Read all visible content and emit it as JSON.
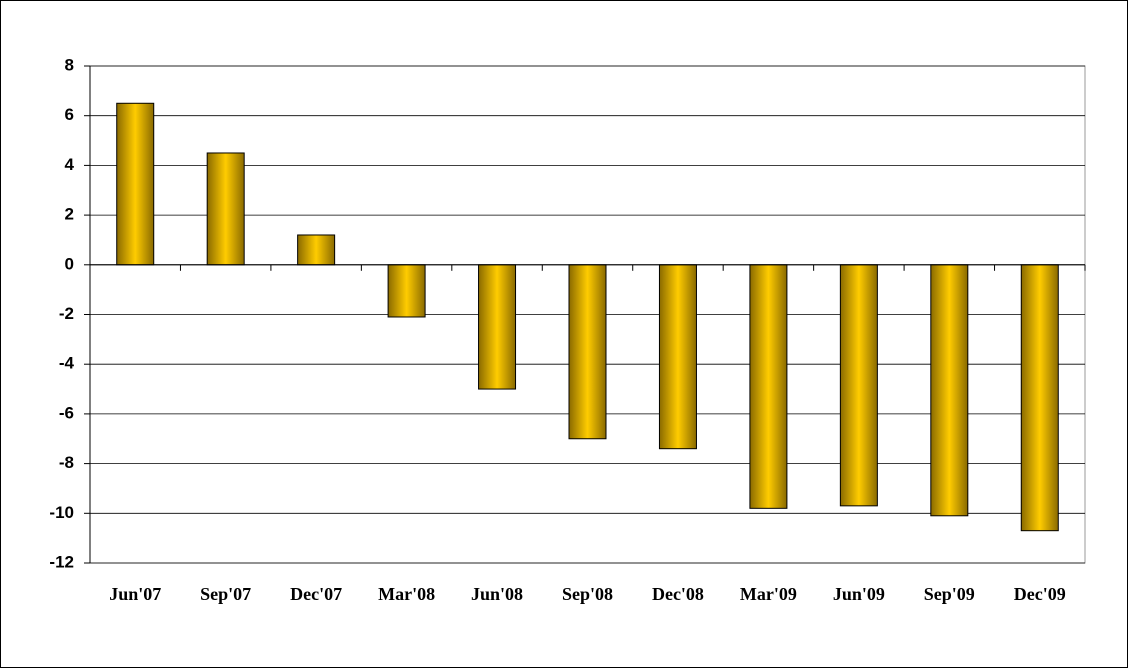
{
  "chart_data": {
    "type": "bar",
    "categories": [
      "Jun'07",
      "Sep'07",
      "Dec'07",
      "Mar'08",
      "Jun'08",
      "Sep'08",
      "Dec'08",
      "Mar'09",
      "Jun'09",
      "Sep'09",
      "Dec'09"
    ],
    "values": [
      6.5,
      4.5,
      1.2,
      -2.1,
      -5.0,
      -7.0,
      -7.4,
      -9.8,
      -9.7,
      -10.1,
      -10.7
    ],
    "color": "#ffcc00",
    "ylim": [
      -12,
      8
    ],
    "yticks": [
      -12,
      -10,
      -8,
      -6,
      -4,
      -2,
      0,
      2,
      4,
      6,
      8
    ],
    "grid": true
  }
}
